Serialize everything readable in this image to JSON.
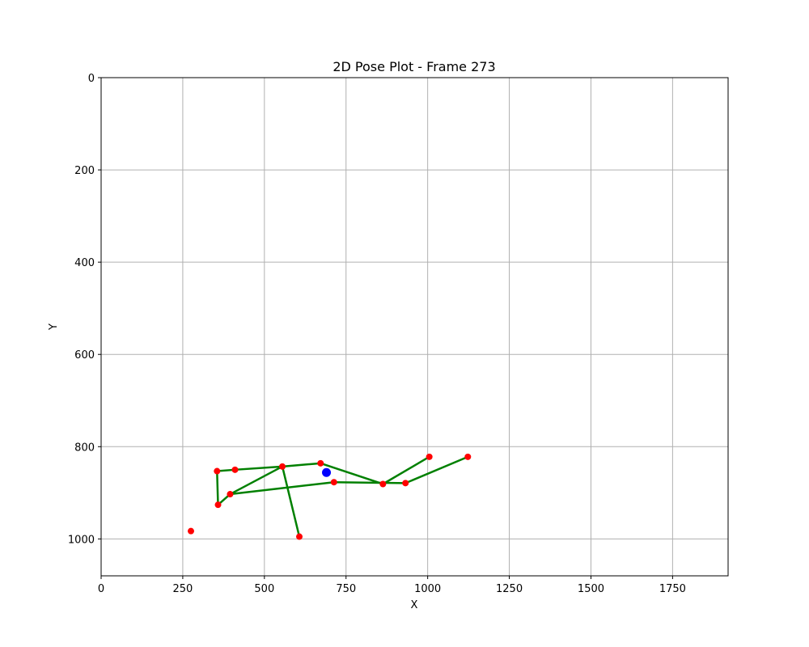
{
  "chart_data": {
    "type": "scatter",
    "title": "2D Pose Plot - Frame 273",
    "xlabel": "X",
    "ylabel": "Y",
    "xlim": [
      0,
      1920
    ],
    "ylim": [
      1080,
      0
    ],
    "y_inverted": true,
    "grid": true,
    "x_ticks": [
      0,
      250,
      500,
      750,
      1000,
      1250,
      1500,
      1750
    ],
    "y_ticks": [
      0,
      200,
      400,
      600,
      800,
      1000
    ],
    "keypoints": [
      {
        "x": 355,
        "y": 853
      },
      {
        "x": 410,
        "y": 850
      },
      {
        "x": 555,
        "y": 843
      },
      {
        "x": 672,
        "y": 836
      },
      {
        "x": 395,
        "y": 903
      },
      {
        "x": 713,
        "y": 877
      },
      {
        "x": 863,
        "y": 881
      },
      {
        "x": 932,
        "y": 879
      },
      {
        "x": 1005,
        "y": 822
      },
      {
        "x": 1123,
        "y": 822
      },
      {
        "x": 358,
        "y": 926
      },
      {
        "x": 607,
        "y": 995
      },
      {
        "x": 275,
        "y": 983
      }
    ],
    "center_point": {
      "x": 690,
      "y": 856
    },
    "bones": [
      [
        0,
        1
      ],
      [
        1,
        2
      ],
      [
        2,
        3
      ],
      [
        3,
        6
      ],
      [
        0,
        10
      ],
      [
        10,
        4
      ],
      [
        4,
        2
      ],
      [
        2,
        11
      ],
      [
        4,
        5
      ],
      [
        5,
        7
      ],
      [
        6,
        8
      ],
      [
        7,
        9
      ]
    ],
    "colors": {
      "keypoint": "#ff0000",
      "center": "#0000ff",
      "bone": "#008000",
      "grid": "#b0b0b0",
      "axis": "#000000"
    }
  }
}
